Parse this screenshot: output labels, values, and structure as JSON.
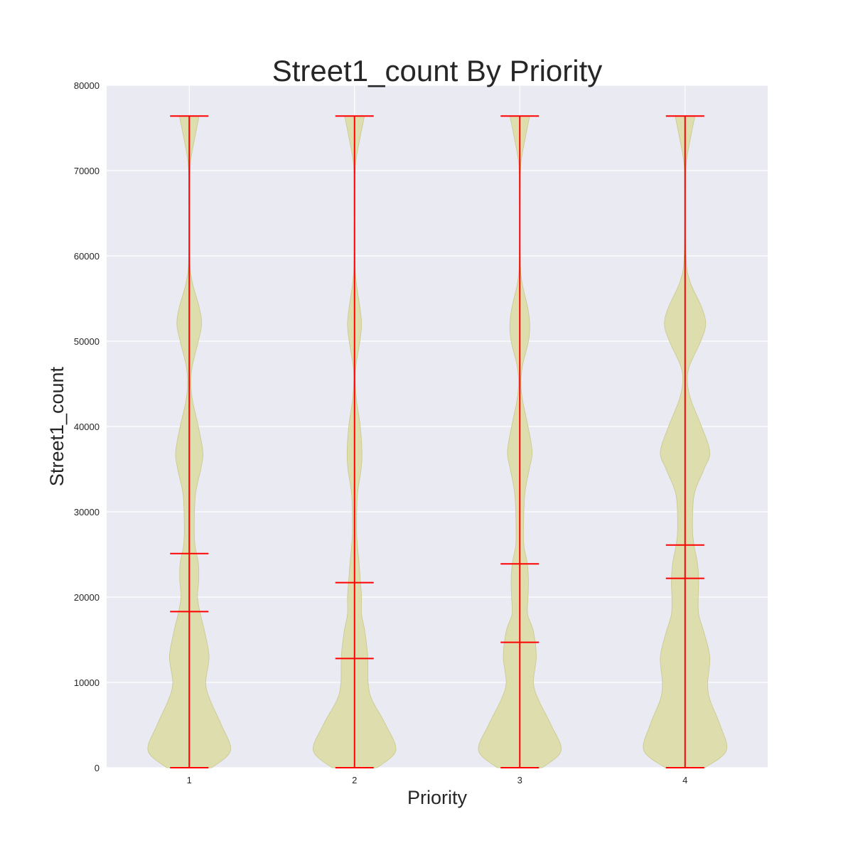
{
  "chart_data": {
    "type": "violin",
    "title": "Street1_count By Priority",
    "xlabel": "Priority",
    "ylabel": "Street1_count",
    "categories": [
      "1",
      "2",
      "3",
      "4"
    ],
    "ylim": [
      0,
      80000
    ],
    "yticks": [
      0,
      10000,
      20000,
      30000,
      40000,
      50000,
      60000,
      70000,
      80000
    ],
    "grid": true,
    "colors": {
      "background": "#eaeaf2",
      "grid": "#ffffff",
      "violin_fill": "#dcdcaa",
      "violin_edge": "#c8c88c",
      "lines": "#ff0000"
    },
    "series": [
      {
        "category": "1",
        "min": 0,
        "max": 76400,
        "median": 18300,
        "mean": 25100,
        "density": [
          [
            0,
            0.55
          ],
          [
            2000,
            1.0
          ],
          [
            5000,
            0.78
          ],
          [
            8000,
            0.5
          ],
          [
            10000,
            0.4
          ],
          [
            13000,
            0.48
          ],
          [
            16000,
            0.37
          ],
          [
            18000,
            0.27
          ],
          [
            20000,
            0.2
          ],
          [
            22000,
            0.23
          ],
          [
            24000,
            0.22
          ],
          [
            26000,
            0.14
          ],
          [
            28000,
            0.12
          ],
          [
            32000,
            0.15
          ],
          [
            35000,
            0.28
          ],
          [
            37000,
            0.33
          ],
          [
            40000,
            0.22
          ],
          [
            43000,
            0.08
          ],
          [
            45000,
            0.04
          ],
          [
            47000,
            0.07
          ],
          [
            50000,
            0.22
          ],
          [
            52000,
            0.3
          ],
          [
            54000,
            0.24
          ],
          [
            57000,
            0.07
          ],
          [
            60000,
            0.01
          ],
          [
            68000,
            0.01
          ],
          [
            71000,
            0.03
          ],
          [
            74000,
            0.14
          ],
          [
            76400,
            0.24
          ]
        ]
      },
      {
        "category": "2",
        "min": 0,
        "max": 76400,
        "median": 12800,
        "mean": 21700,
        "density": [
          [
            0,
            0.55
          ],
          [
            2000,
            1.0
          ],
          [
            5000,
            0.76
          ],
          [
            8000,
            0.42
          ],
          [
            10000,
            0.33
          ],
          [
            13000,
            0.32
          ],
          [
            16000,
            0.25
          ],
          [
            18000,
            0.17
          ],
          [
            20000,
            0.17
          ],
          [
            22000,
            0.14
          ],
          [
            24000,
            0.11
          ],
          [
            26000,
            0.07
          ],
          [
            28000,
            0.05
          ],
          [
            32000,
            0.07
          ],
          [
            35000,
            0.16
          ],
          [
            37000,
            0.18
          ],
          [
            40000,
            0.14
          ],
          [
            43000,
            0.05
          ],
          [
            45000,
            0.02
          ],
          [
            47000,
            0.03
          ],
          [
            50000,
            0.13
          ],
          [
            52000,
            0.17
          ],
          [
            54000,
            0.13
          ],
          [
            57000,
            0.04
          ],
          [
            60000,
            0.01
          ],
          [
            68000,
            0.01
          ],
          [
            71000,
            0.03
          ],
          [
            74000,
            0.14
          ],
          [
            76400,
            0.24
          ]
        ]
      },
      {
        "category": "3",
        "min": 0,
        "max": 76400,
        "median": 14700,
        "mean": 23900,
        "density": [
          [
            0,
            0.55
          ],
          [
            2000,
            1.0
          ],
          [
            5000,
            0.76
          ],
          [
            8000,
            0.45
          ],
          [
            10000,
            0.33
          ],
          [
            13000,
            0.4
          ],
          [
            16000,
            0.33
          ],
          [
            18000,
            0.19
          ],
          [
            20000,
            0.2
          ],
          [
            22000,
            0.21
          ],
          [
            24000,
            0.18
          ],
          [
            26000,
            0.1
          ],
          [
            28000,
            0.09
          ],
          [
            32000,
            0.12
          ],
          [
            35000,
            0.23
          ],
          [
            37000,
            0.3
          ],
          [
            40000,
            0.2
          ],
          [
            43000,
            0.07
          ],
          [
            45000,
            0.03
          ],
          [
            47000,
            0.06
          ],
          [
            50000,
            0.21
          ],
          [
            52000,
            0.24
          ],
          [
            54000,
            0.19
          ],
          [
            57000,
            0.05
          ],
          [
            60000,
            0.01
          ],
          [
            68000,
            0.01
          ],
          [
            71000,
            0.03
          ],
          [
            74000,
            0.14
          ],
          [
            76400,
            0.24
          ]
        ]
      },
      {
        "category": "4",
        "min": 0,
        "max": 76400,
        "median": 22200,
        "mean": 26100,
        "density": [
          [
            0,
            0.48
          ],
          [
            2000,
            1.0
          ],
          [
            5000,
            0.85
          ],
          [
            8000,
            0.6
          ],
          [
            10000,
            0.55
          ],
          [
            13000,
            0.6
          ],
          [
            16000,
            0.45
          ],
          [
            18000,
            0.33
          ],
          [
            20000,
            0.32
          ],
          [
            22000,
            0.33
          ],
          [
            24000,
            0.3
          ],
          [
            26000,
            0.22
          ],
          [
            28000,
            0.18
          ],
          [
            32000,
            0.22
          ],
          [
            35000,
            0.46
          ],
          [
            37000,
            0.6
          ],
          [
            40000,
            0.4
          ],
          [
            43000,
            0.15
          ],
          [
            45000,
            0.06
          ],
          [
            47000,
            0.1
          ],
          [
            50000,
            0.38
          ],
          [
            52000,
            0.5
          ],
          [
            54000,
            0.4
          ],
          [
            57000,
            0.12
          ],
          [
            60000,
            0.02
          ],
          [
            68000,
            0.01
          ],
          [
            71000,
            0.03
          ],
          [
            74000,
            0.14
          ],
          [
            76400,
            0.24
          ]
        ]
      }
    ]
  }
}
